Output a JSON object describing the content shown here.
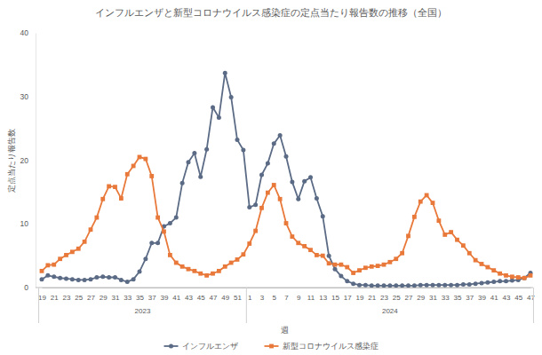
{
  "chart_data": {
    "type": "line",
    "title": "インフルエンザと新型コロナウイルス感染症の定点当たり報告数の推移（全国）",
    "x_label": "週",
    "y_label": "定点当たり報告数",
    "categories": [
      "19",
      null,
      "21",
      null,
      "23",
      null,
      "25",
      null,
      "27",
      null,
      "29",
      null,
      "31",
      null,
      "33",
      null,
      "35",
      null,
      "37",
      null,
      "39",
      null,
      "41",
      null,
      "43",
      null,
      "45",
      null,
      "47",
      null,
      "49",
      null,
      "51",
      null,
      "1",
      null,
      "3",
      null,
      "5",
      null,
      "7",
      null,
      "9",
      null,
      "11",
      null,
      "13",
      null,
      "15",
      null,
      "17",
      null,
      "19",
      null,
      "21",
      null,
      "23",
      null,
      "25",
      null,
      "27",
      null,
      "29",
      null,
      "31",
      null,
      "33",
      null,
      "35",
      null,
      "37",
      null,
      "39",
      null,
      "41",
      null,
      "43",
      null,
      "45",
      null,
      "47"
    ],
    "groups": [
      {
        "label": "2023",
        "count": 34
      },
      {
        "label": "2024",
        "count": 47
      }
    ],
    "series": [
      {
        "name": "インフルエンザ",
        "color": "#5b6b85",
        "marker": "circle",
        "line_style": "solid",
        "values": [
          1.3,
          1.9,
          1.7,
          1.5,
          1.4,
          1.3,
          1.2,
          1.2,
          1.3,
          1.6,
          1.7,
          1.6,
          1.6,
          1.2,
          0.9,
          1.3,
          2.5,
          4.5,
          7.0,
          7.0,
          9.6,
          10.1,
          11.0,
          16.4,
          19.7,
          21.1,
          17.4,
          21.7,
          28.3,
          26.7,
          33.7,
          29.9,
          23.2,
          21.6,
          12.6,
          13.0,
          17.7,
          19.5,
          22.6,
          23.9,
          20.6,
          16.6,
          13.9,
          16.7,
          17.3,
          14.0,
          11.2,
          5.0,
          2.9,
          1.8,
          1.0,
          0.6,
          0.4,
          0.4,
          0.3,
          0.3,
          0.3,
          0.3,
          0.3,
          0.3,
          0.3,
          0.3,
          0.4,
          0.4,
          0.4,
          0.4,
          0.4,
          0.4,
          0.4,
          0.5,
          0.5,
          0.6,
          0.7,
          0.8,
          0.9,
          1.0,
          1.0,
          1.1,
          1.2,
          1.5,
          2.3
        ]
      },
      {
        "name": "新型コロナウイルス感染症",
        "color": "#e8793a",
        "marker": "square",
        "line_style": "solid",
        "values": [
          2.6,
          3.5,
          3.6,
          4.5,
          5.1,
          5.6,
          6.1,
          7.2,
          9.1,
          11.0,
          13.9,
          15.9,
          15.8,
          14.0,
          17.8,
          19.1,
          20.5,
          20.2,
          17.5,
          11.0,
          8.8,
          5.1,
          3.9,
          3.3,
          2.9,
          2.6,
          2.2,
          1.9,
          2.2,
          2.6,
          3.3,
          3.9,
          4.4,
          5.2,
          6.9,
          8.9,
          12.5,
          14.9,
          16.1,
          13.9,
          10.1,
          8.0,
          7.0,
          6.5,
          5.9,
          5.1,
          5.0,
          3.8,
          3.6,
          3.6,
          3.2,
          2.3,
          2.7,
          3.1,
          3.3,
          3.4,
          3.6,
          4.0,
          4.5,
          5.4,
          8.1,
          11.1,
          13.5,
          14.5,
          13.3,
          10.5,
          8.3,
          8.7,
          7.5,
          6.6,
          5.4,
          4.3,
          3.7,
          3.2,
          2.7,
          2.2,
          1.9,
          1.7,
          1.6,
          1.5,
          1.9
        ]
      }
    ],
    "ylim": [
      0,
      40
    ],
    "yticks": [
      0,
      10,
      20,
      30,
      40
    ],
    "grid": false,
    "legend": "bottom"
  }
}
